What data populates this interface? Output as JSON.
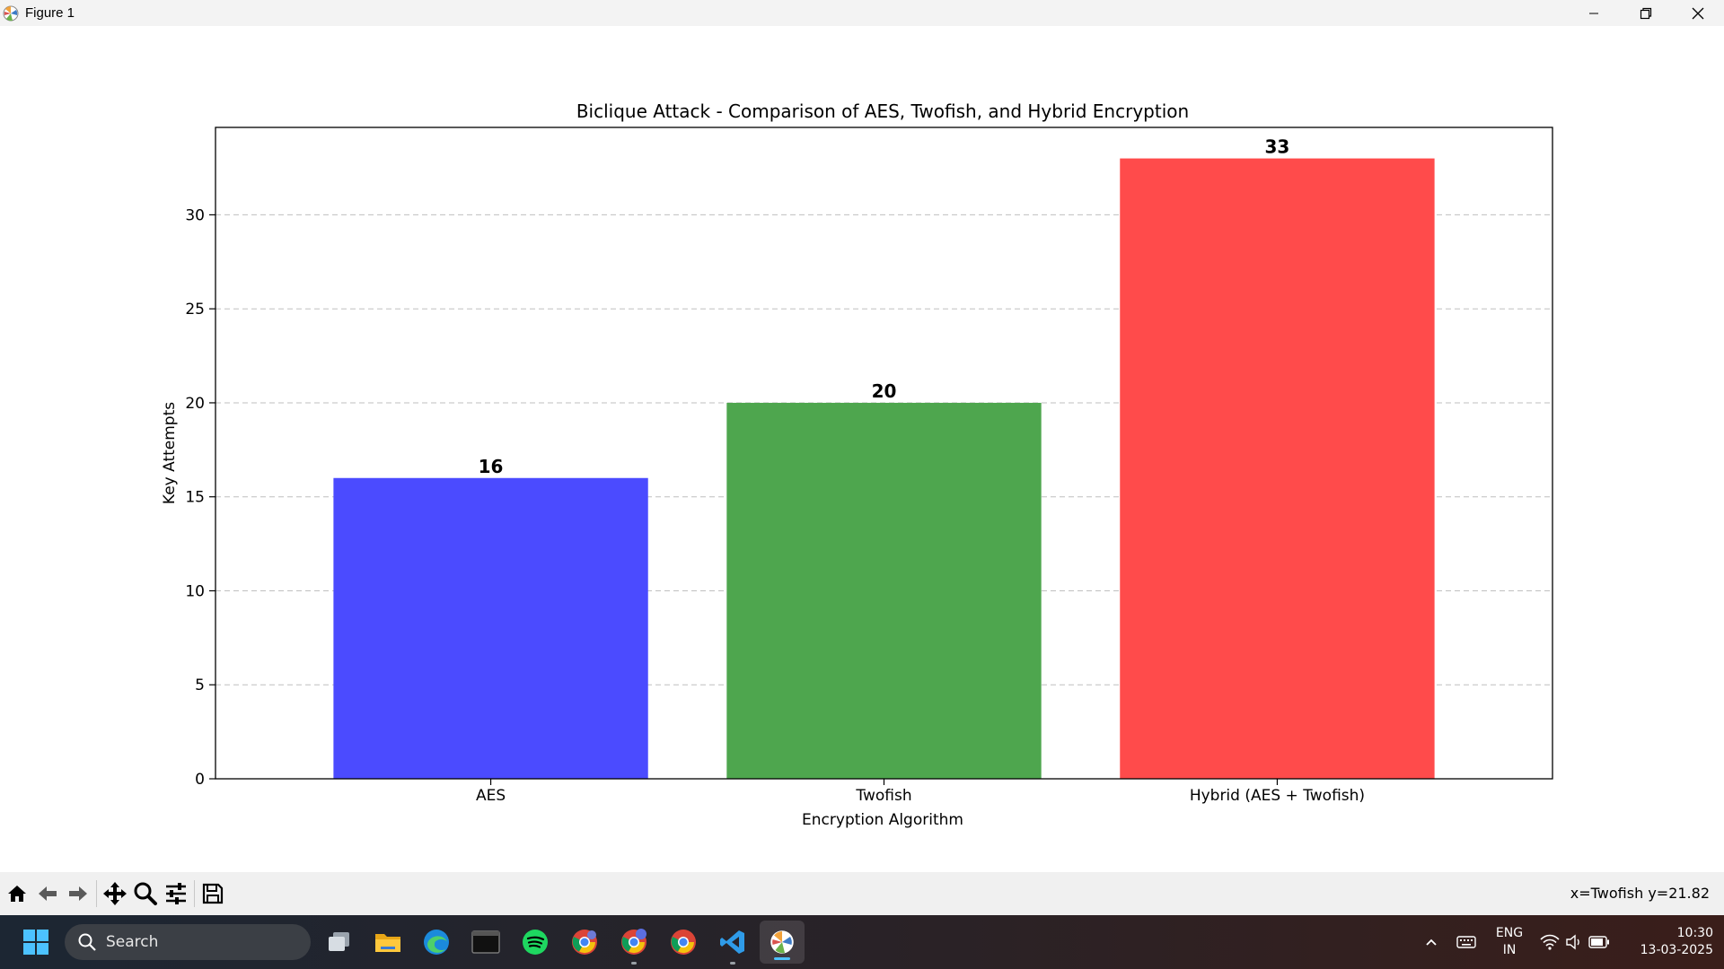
{
  "window": {
    "title": "Figure 1"
  },
  "chart_data": {
    "type": "bar",
    "title": "Biclique Attack - Comparison of AES, Twofish, and Hybrid Encryption",
    "xlabel": "Encryption Algorithm",
    "ylabel": "Key Attempts",
    "categories": [
      "AES",
      "Twofish",
      "Hybrid (AES + Twofish)"
    ],
    "values": [
      16,
      20,
      33
    ],
    "colors": [
      "#4b4bff",
      "#4ea64e",
      "#ff4b4b"
    ],
    "value_labels": [
      "16",
      "20",
      "33"
    ],
    "ylim": [
      0,
      34.65
    ],
    "yticks": [
      0,
      5,
      10,
      15,
      20,
      25,
      30
    ],
    "ytick_labels": [
      "0",
      "5",
      "10",
      "15",
      "20",
      "25",
      "30"
    ],
    "grid": "y-axis dashed",
    "legend": "none"
  },
  "toolbar": {
    "buttons": [
      "home-icon",
      "back-icon",
      "forward-icon",
      "pan-icon",
      "zoom-icon",
      "configure-icon",
      "save-icon"
    ],
    "coordinates": "x=Twofish y=21.82"
  },
  "taskbar": {
    "search_label": "Search",
    "language": "ENG",
    "region": "IN",
    "time": "10:30",
    "date": "13-03-2025",
    "pinned": [
      "start-icon",
      "task-view-icon",
      "file-explorer-icon",
      "edge-icon",
      "terminal-icon",
      "spotify-icon",
      "chrome-profile-v-icon",
      "chrome-profile-c-icon",
      "chrome-icon",
      "vscode-icon",
      "matplotlib-figure-icon"
    ]
  }
}
